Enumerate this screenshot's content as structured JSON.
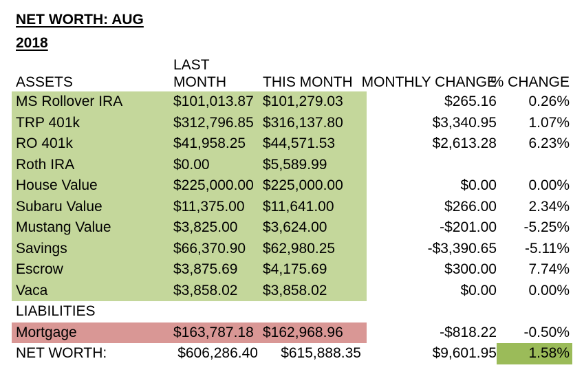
{
  "title": {
    "line1": "NET WORTH: AUG",
    "line2": "2018"
  },
  "columns": [
    "ASSETS",
    "LAST MONTH",
    "THIS MONTH",
    "MONTHLY CHANGE",
    "% CHANGE"
  ],
  "assets": [
    {
      "name": "MS Rollover IRA",
      "last": "$101,013.87",
      "this": "$101,279.03",
      "change": "$265.16",
      "pct": "0.26%"
    },
    {
      "name": "TRP 401k",
      "last": "$312,796.85",
      "this": "$316,137.80",
      "change": "$3,340.95",
      "pct": "1.07%"
    },
    {
      "name": "RO 401k",
      "last": "$41,958.25",
      "this": "$44,571.53",
      "change": "$2,613.28",
      "pct": "6.23%"
    },
    {
      "name": "Roth IRA",
      "last": "$0.00",
      "this": "$5,589.99",
      "change": "",
      "pct": ""
    },
    {
      "name": "House Value",
      "last": "$225,000.00",
      "this": "$225,000.00",
      "change": "$0.00",
      "pct": "0.00%"
    },
    {
      "name": "Subaru Value",
      "last": "$11,375.00",
      "this": "$11,641.00",
      "change": "$266.00",
      "pct": "2.34%"
    },
    {
      "name": "Mustang Value",
      "last": "$3,825.00",
      "this": "$3,624.00",
      "change": "-$201.00",
      "pct": "-5.25%"
    },
    {
      "name": "Savings",
      "last": "$66,370.90",
      "this": "$62,980.25",
      "change": "-$3,390.65",
      "pct": "-5.11%"
    },
    {
      "name": "Escrow",
      "last": "$3,875.69",
      "this": "$4,175.69",
      "change": "$300.00",
      "pct": "7.74%"
    },
    {
      "name": "Vaca",
      "last": "$3,858.02",
      "this": "$3,858.02",
      "change": "$0.00",
      "pct": "0.00%"
    }
  ],
  "liabilities_label": "LIABILITIES",
  "liabilities": [
    {
      "name": "Mortgage",
      "last": "$163,787.18",
      "this": "$162,968.96",
      "change": "-$818.22",
      "pct": "-0.50%"
    }
  ],
  "net_worth": {
    "name": "NET WORTH:",
    "last": "$606,286.40",
    "this": "$615,888.35",
    "change": "$9,601.95",
    "pct": "1.58%"
  },
  "colors": {
    "asset_fill": "#C4D79B",
    "liability_fill": "#D99795",
    "highlight_fill": "#9BBB59",
    "text": "#000000",
    "background": "#FFFFFF"
  }
}
